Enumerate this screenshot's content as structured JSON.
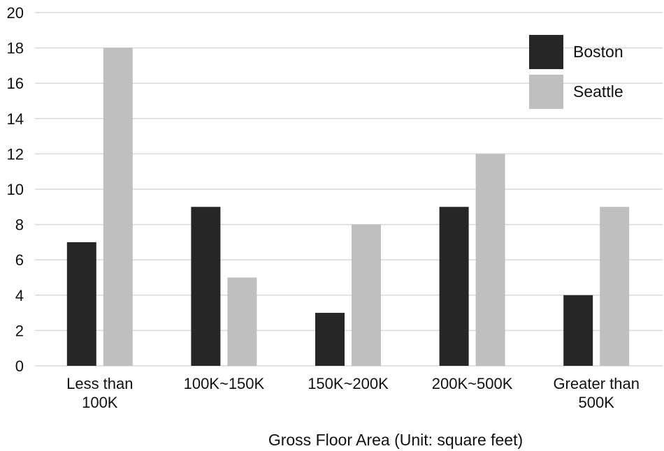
{
  "chart_data": {
    "type": "bar",
    "categories": [
      [
        "Less than",
        "100K"
      ],
      [
        "100K~150K"
      ],
      [
        "150K~200K"
      ],
      [
        "200K~500K"
      ],
      [
        "Greater than",
        "500K"
      ]
    ],
    "series": [
      {
        "name": "Boston",
        "color": "#262626",
        "values": [
          7,
          9,
          3,
          9,
          4
        ]
      },
      {
        "name": "Seattle",
        "color": "#bfbfbf",
        "values": [
          18,
          5,
          8,
          12,
          9
        ]
      }
    ],
    "xlabel": "Gross Floor Area (Unit: square feet)",
    "ylabel": "",
    "ylim": [
      0,
      20
    ],
    "yticks": [
      0,
      2,
      4,
      6,
      8,
      10,
      12,
      14,
      16,
      18,
      20
    ],
    "grid": true,
    "legend_position": "top-right"
  }
}
